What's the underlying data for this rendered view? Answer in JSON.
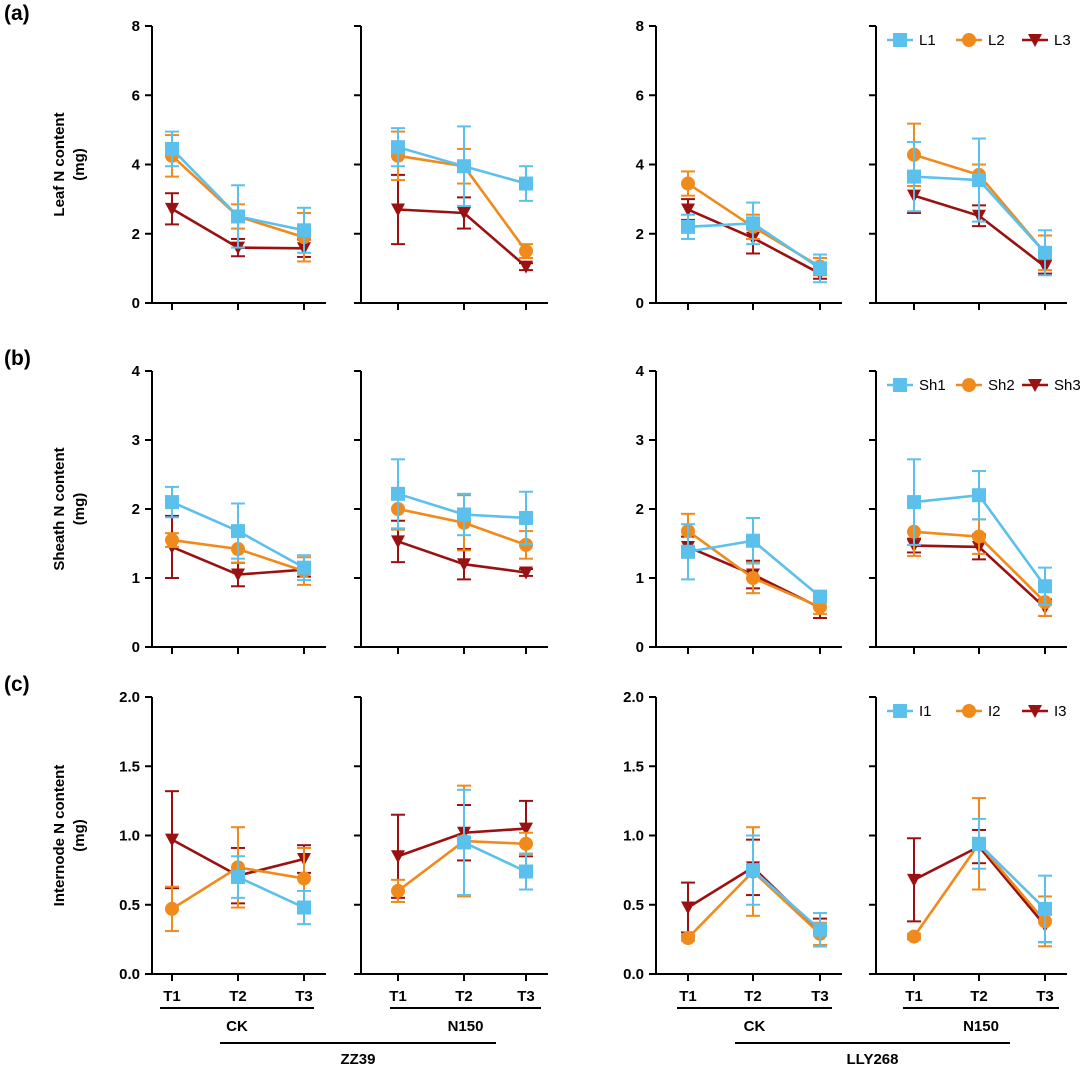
{
  "chart_data": [
    {
      "panel_label": "(a)",
      "type": "line",
      "ylabel_line1": "Leaf N content",
      "ylabel_line2": "(mg)",
      "ylim": [
        0,
        8
      ],
      "yticks": [
        "0",
        "2",
        "4",
        "6",
        "8"
      ],
      "legend": [
        "L1",
        "L2",
        "L3"
      ],
      "subplots": [
        {
          "cultivar": "ZZ39",
          "treatment": "CK",
          "series": [
            {
              "name": "L1",
              "values": [
                4.45,
                2.5,
                2.1
              ],
              "errors": [
                0.5,
                0.9,
                0.65
              ]
            },
            {
              "name": "L2",
              "values": [
                4.25,
                2.5,
                1.9
              ],
              "errors": [
                0.6,
                0.35,
                0.7
              ]
            },
            {
              "name": "L3",
              "values": [
                2.72,
                1.6,
                1.58
              ],
              "errors": [
                0.45,
                0.25,
                0.25
              ]
            }
          ]
        },
        {
          "cultivar": "ZZ39",
          "treatment": "N150",
          "series": [
            {
              "name": "L1",
              "values": [
                4.5,
                3.95,
                3.45
              ],
              "errors": [
                0.55,
                1.15,
                0.5
              ]
            },
            {
              "name": "L2",
              "values": [
                4.25,
                3.95,
                1.5
              ],
              "errors": [
                0.7,
                0.5,
                0.2
              ]
            },
            {
              "name": "L3",
              "values": [
                2.7,
                2.6,
                1.05
              ],
              "errors": [
                1.0,
                0.45,
                0.1
              ]
            }
          ]
        },
        {
          "cultivar": "LLY268",
          "treatment": "CK",
          "series": [
            {
              "name": "L1",
              "values": [
                2.2,
                2.3,
                1.0
              ],
              "errors": [
                0.35,
                0.6,
                0.4
              ]
            },
            {
              "name": "L2",
              "values": [
                3.45,
                2.2,
                1.05
              ],
              "errors": [
                0.35,
                0.35,
                0.25
              ]
            },
            {
              "name": "L3",
              "values": [
                2.7,
                1.88,
                0.85
              ],
              "errors": [
                0.3,
                0.45,
                0.15
              ]
            }
          ]
        },
        {
          "cultivar": "LLY268",
          "treatment": "N150",
          "series": [
            {
              "name": "L1",
              "values": [
                3.65,
                3.55,
                1.45
              ],
              "errors": [
                1.0,
                1.2,
                0.65
              ]
            },
            {
              "name": "L2",
              "values": [
                4.28,
                3.7,
                1.45
              ],
              "errors": [
                0.9,
                0.3,
                0.5
              ]
            },
            {
              "name": "L3",
              "values": [
                3.1,
                2.52,
                1.05
              ],
              "errors": [
                0.5,
                0.3,
                0.2
              ]
            }
          ]
        }
      ]
    },
    {
      "panel_label": "(b)",
      "type": "line",
      "ylabel_line1": "Sheath N content",
      "ylabel_line2": "(mg)",
      "ylim": [
        0,
        4
      ],
      "yticks": [
        "0",
        "1",
        "2",
        "3",
        "4"
      ],
      "legend": [
        "Sh1",
        "Sh2",
        "Sh3"
      ],
      "subplots": [
        {
          "cultivar": "ZZ39",
          "treatment": "CK",
          "series": [
            {
              "name": "Sh1",
              "values": [
                2.1,
                1.68,
                1.15
              ],
              "errors": [
                0.22,
                0.4,
                0.18
              ]
            },
            {
              "name": "Sh2",
              "values": [
                1.55,
                1.42,
                1.1
              ],
              "errors": [
                0.1,
                0.2,
                0.2
              ]
            },
            {
              "name": "Sh3",
              "values": [
                1.45,
                1.05,
                1.12
              ],
              "errors": [
                0.45,
                0.17,
                0.1
              ]
            }
          ]
        },
        {
          "cultivar": "ZZ39",
          "treatment": "N150",
          "series": [
            {
              "name": "Sh1",
              "values": [
                2.22,
                1.92,
                1.87
              ],
              "errors": [
                0.5,
                0.3,
                0.38
              ]
            },
            {
              "name": "Sh2",
              "values": [
                2.0,
                1.8,
                1.48
              ],
              "errors": [
                0.3,
                0.4,
                0.2
              ]
            },
            {
              "name": "Sh3",
              "values": [
                1.53,
                1.2,
                1.08
              ],
              "errors": [
                0.3,
                0.22,
                0.05
              ]
            }
          ]
        },
        {
          "cultivar": "LLY268",
          "treatment": "CK",
          "series": [
            {
              "name": "Sh1",
              "values": [
                1.38,
                1.54,
                0.73
              ],
              "errors": [
                0.4,
                0.33,
                0.08
              ]
            },
            {
              "name": "Sh2",
              "values": [
                1.68,
                1.0,
                0.58
              ],
              "errors": [
                0.25,
                0.22,
                0.1
              ]
            },
            {
              "name": "Sh3",
              "values": [
                1.45,
                1.05,
                0.57
              ],
              "errors": [
                0.15,
                0.2,
                0.15
              ]
            }
          ]
        },
        {
          "cultivar": "LLY268",
          "treatment": "N150",
          "series": [
            {
              "name": "Sh1",
              "values": [
                2.1,
                2.2,
                0.88
              ],
              "errors": [
                0.62,
                0.35,
                0.27
              ]
            },
            {
              "name": "Sh2",
              "values": [
                1.67,
                1.6,
                0.65
              ],
              "errors": [
                0.35,
                0.25,
                0.2
              ]
            },
            {
              "name": "Sh3",
              "values": [
                1.47,
                1.45,
                0.57
              ],
              "errors": [
                0.1,
                0.18,
                0.12
              ]
            }
          ]
        }
      ]
    },
    {
      "panel_label": "(c)",
      "type": "line",
      "ylabel_line1": "Internode N content",
      "ylabel_line2": "(mg)",
      "ylim": [
        0,
        2.0
      ],
      "yticks": [
        "0.0",
        "0.5",
        "1.0",
        "1.5",
        "2.0"
      ],
      "legend": [
        "I1",
        "I2",
        "I3"
      ],
      "subplots": [
        {
          "cultivar": "ZZ39",
          "treatment": "CK",
          "series": [
            {
              "name": "I1",
              "values": [
                null,
                0.7,
                0.48
              ],
              "errors": [
                0,
                0.15,
                0.12
              ]
            },
            {
              "name": "I2",
              "values": [
                0.47,
                0.77,
                0.69
              ],
              "errors": [
                0.16,
                0.29,
                0.22
              ]
            },
            {
              "name": "I3",
              "values": [
                0.97,
                0.71,
                0.83
              ],
              "errors": [
                0.35,
                0.2,
                0.1
              ]
            }
          ]
        },
        {
          "cultivar": "ZZ39",
          "treatment": "N150",
          "series": [
            {
              "name": "I1",
              "values": [
                null,
                0.95,
                0.74
              ],
              "errors": [
                0,
                0.38,
                0.13
              ]
            },
            {
              "name": "I2",
              "values": [
                0.6,
                0.96,
                0.94
              ],
              "errors": [
                0.08,
                0.4,
                0.08
              ]
            },
            {
              "name": "I3",
              "values": [
                0.85,
                1.02,
                1.05
              ],
              "errors": [
                0.3,
                0.2,
                0.2
              ]
            }
          ]
        },
        {
          "cultivar": "LLY268",
          "treatment": "CK",
          "series": [
            {
              "name": "I1",
              "values": [
                null,
                0.75,
                0.32
              ],
              "errors": [
                0,
                0.25,
                0.12
              ]
            },
            {
              "name": "I2",
              "values": [
                0.26,
                0.74,
                0.29
              ],
              "errors": [
                0.02,
                0.32,
                0.08
              ]
            },
            {
              "name": "I3",
              "values": [
                0.48,
                0.77,
                0.3
              ],
              "errors": [
                0.18,
                0.2,
                0.1
              ]
            }
          ]
        },
        {
          "cultivar": "LLY268",
          "treatment": "N150",
          "series": [
            {
              "name": "I1",
              "values": [
                null,
                0.94,
                0.47
              ],
              "errors": [
                0,
                0.18,
                0.24
              ]
            },
            {
              "name": "I2",
              "values": [
                0.27,
                0.94,
                0.38
              ],
              "errors": [
                0.02,
                0.33,
                0.18
              ]
            },
            {
              "name": "I3",
              "values": [
                0.68,
                0.92,
                0.35
              ],
              "errors": [
                0.3,
                0.12,
                0.12
              ]
            }
          ]
        }
      ]
    }
  ],
  "x_categories": [
    "T1",
    "T2",
    "T3"
  ],
  "treatments": [
    "CK",
    "N150"
  ],
  "cultivars": [
    "ZZ39",
    "LLY268"
  ],
  "series_colors": [
    "#5bc0eb",
    "#f08a1c",
    "#9b1111"
  ],
  "series_markers": [
    "square",
    "circle",
    "triangle-down"
  ]
}
